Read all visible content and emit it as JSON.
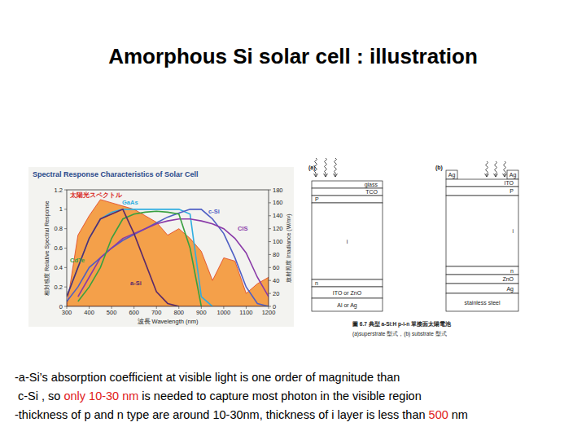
{
  "slide": {
    "title": "Amorphous Si solar cell : illustration",
    "bullets": [
      {
        "segments": [
          {
            "text": "-a-Si’s absorption coefficient at visible light is one order of magnitude than",
            "highlight": false
          }
        ]
      },
      {
        "segments": [
          {
            "text": " c-Si , so ",
            "highlight": false
          },
          {
            "text": "only 10-30 nm",
            "highlight": true
          },
          {
            "text": " is needed to capture most photon in the visible region",
            "highlight": false
          }
        ]
      },
      {
        "segments": [
          {
            "text": "-thickness of p and n type are around 10-30nm, thickness of i layer is less than ",
            "highlight": false
          },
          {
            "text": "500",
            "highlight": true
          },
          {
            "text": " nm",
            "highlight": false
          }
        ]
      }
    ]
  },
  "chart_data": {
    "type": "line",
    "title": "Spectral Response Characteristics of Solar Cell",
    "x_label": "波長 Wavelength (nm)",
    "y_label": "相対感度 Relative Spectral Response",
    "y2_label": "放射照度 Irradiance (W/m²)",
    "x": [
      300,
      350,
      400,
      450,
      500,
      550,
      600,
      650,
      700,
      750,
      800,
      850,
      900,
      950,
      1000,
      1050,
      1100,
      1150,
      1200
    ],
    "xlim": [
      300,
      1200
    ],
    "xticks": [
      300,
      400,
      500,
      600,
      700,
      800,
      900,
      1000,
      1100,
      1200
    ],
    "ylim": [
      0,
      1.2
    ],
    "yticks": [
      0,
      0.2,
      0.4,
      0.6,
      0.8,
      1,
      1.2
    ],
    "y2lim": [
      0,
      180
    ],
    "y2ticks": [
      0,
      20,
      40,
      60,
      80,
      100,
      120,
      140,
      160,
      180
    ],
    "grid": false,
    "series": [
      {
        "name": "太陽光スペクトル",
        "type": "area",
        "axis": "y2",
        "color": "#f4a04a",
        "values": [
          0,
          110,
          140,
          165,
          160,
          155,
          150,
          140,
          130,
          110,
          120,
          105,
          85,
          40,
          75,
          70,
          20,
          35,
          45
        ]
      },
      {
        "name": "GaAs",
        "color": "#30aee0",
        "values": [
          0.1,
          0.4,
          0.7,
          0.9,
          0.97,
          1,
          1,
          1,
          1,
          1,
          1,
          0.95,
          0.1,
          0,
          null,
          null,
          null,
          null,
          null
        ]
      },
      {
        "name": "c-Si",
        "color": "#4f5fc4",
        "values": [
          0.05,
          0.2,
          0.4,
          0.5,
          0.6,
          0.68,
          0.74,
          0.8,
          0.86,
          0.92,
          0.96,
          1,
          1,
          0.9,
          0.75,
          0.5,
          0.2,
          0.03,
          0
        ]
      },
      {
        "name": "CIS",
        "color": "#8a3aa8",
        "values": [
          null,
          0.1,
          0.3,
          0.5,
          0.6,
          0.7,
          0.75,
          0.8,
          0.85,
          0.88,
          0.9,
          0.9,
          0.88,
          0.85,
          0.8,
          0.7,
          0.55,
          0.3,
          0.1
        ]
      },
      {
        "name": "CdTe",
        "color": "#38a040",
        "values": [
          null,
          0.05,
          0.2,
          0.4,
          0.7,
          0.9,
          0.95,
          0.97,
          0.98,
          0.97,
          0.95,
          0.6,
          0,
          null,
          null,
          null,
          null,
          null,
          null
        ]
      },
      {
        "name": "a-Si",
        "color": "#5a2a6a",
        "values": [
          0.1,
          0.4,
          0.7,
          0.9,
          0.95,
          1,
          0.75,
          0.45,
          0.15,
          0.03,
          0,
          null,
          null,
          null,
          null,
          null,
          null,
          null,
          null
        ]
      }
    ]
  },
  "diagrams": {
    "panels": [
      {
        "label": "(a)",
        "layers": [
          "glass",
          "TCO",
          "P",
          "i",
          "n",
          "ITO or ZnO",
          "Al or Ag"
        ]
      },
      {
        "label": "(b)",
        "contacts": [
          "Ag",
          "Ag"
        ],
        "layers": [
          "ITO",
          "P",
          "i",
          "n",
          "ZnO",
          "Ag",
          "stainless steel"
        ]
      }
    ],
    "caption": [
      "圖 6.7 典型 a-Si:H p-i-n 單接面太陽電池",
      "(a)superstrate 型式，(b) substrate 型式"
    ]
  }
}
